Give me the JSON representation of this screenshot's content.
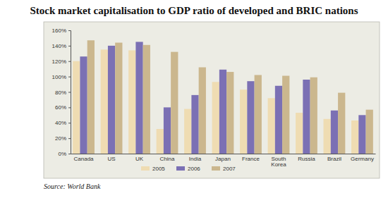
{
  "chart_data": {
    "type": "bar",
    "title": "Stock market capitalisation to GDP ratio of developed and BRIC nations",
    "source": "Source: World Bank",
    "categories": [
      "Canada",
      "US",
      "UK",
      "China",
      "India",
      "Japan",
      "France",
      "South Korea",
      "Russia",
      "Brazil",
      "Germany"
    ],
    "series": [
      {
        "name": "2005",
        "color": "#efdcb2",
        "values": [
          120,
          135,
          134,
          32,
          58,
          93,
          83,
          72,
          53,
          45,
          43
        ]
      },
      {
        "name": "2006",
        "color": "#7b70b4",
        "values": [
          126,
          140,
          145,
          60,
          76,
          109,
          94,
          88,
          96,
          56,
          50
        ]
      },
      {
        "name": "2007",
        "color": "#cbb78e",
        "values": [
          147,
          144,
          141,
          132,
          112,
          106,
          102,
          101,
          99,
          79,
          57
        ]
      }
    ],
    "ylim": [
      0,
      160
    ],
    "yticks": [
      {
        "value": 0,
        "label": "0%"
      },
      {
        "value": 20,
        "label": "20%"
      },
      {
        "value": 40,
        "label": "40%"
      },
      {
        "value": 60,
        "label": "60%"
      },
      {
        "value": 80,
        "label": "80%"
      },
      {
        "value": 100,
        "label": "100%"
      },
      {
        "value": 120,
        "label": "120%"
      },
      {
        "value": 140,
        "label": "140%"
      },
      {
        "value": 160,
        "label": "160%"
      }
    ],
    "grid": false,
    "legend": "bottom"
  }
}
